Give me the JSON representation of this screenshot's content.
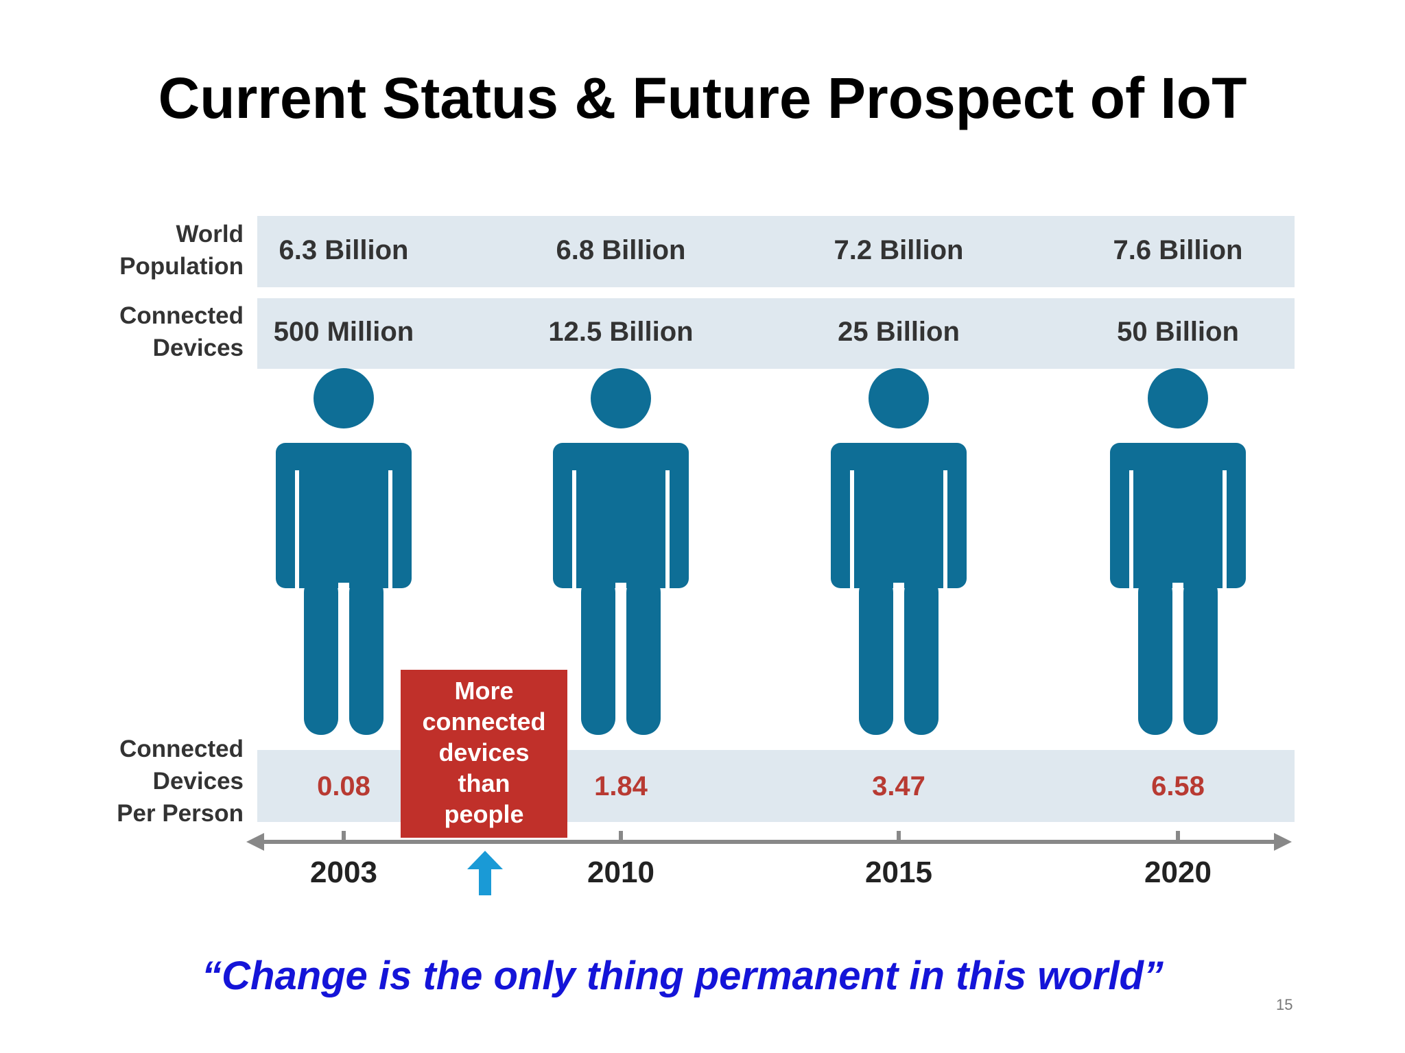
{
  "title": "Current Status & Future Prospect of IoT",
  "row_labels": [
    [
      "World",
      "Population"
    ],
    [
      "Connected",
      "Devices"
    ],
    [
      "Connected",
      "Devices",
      "Per Person"
    ]
  ],
  "columns": [
    {
      "year": "2003",
      "population": "6.3 Billion",
      "devices": "500 Million",
      "per_person": 0.08
    },
    {
      "year": "2010",
      "population": "6.8 Billion",
      "devices": "12.5 Billion",
      "per_person": 1.84
    },
    {
      "year": "2015",
      "population": "7.2 Billion",
      "devices": "25 Billion",
      "per_person": 3.47
    },
    {
      "year": "2020",
      "population": "7.6 Billion",
      "devices": "50 Billion",
      "per_person": 6.58
    }
  ],
  "callout": [
    "More",
    "connected",
    "devices",
    "than",
    "people"
  ],
  "quote": "“Change is the only thing permanent in this world”",
  "page_number": "15"
}
